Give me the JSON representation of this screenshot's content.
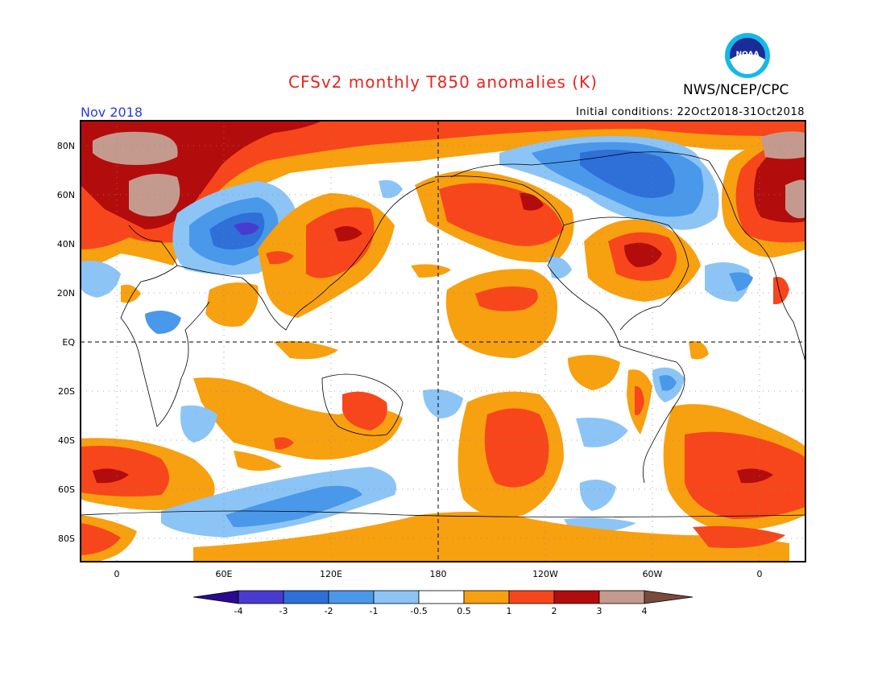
{
  "title": "CFSv2 monthly T850 anomalies (K)",
  "period": "Nov 2018",
  "initial_conditions": "Initial conditions: 22Oct2018-31Oct2018",
  "agency": "NWS/NCEP/CPC",
  "logo_text": "NOAA",
  "lat_labels": [
    "80N",
    "60N",
    "40N",
    "20N",
    "EQ",
    "20S",
    "40S",
    "60S",
    "80S"
  ],
  "lon_labels": [
    "0",
    "60E",
    "120E",
    "180",
    "120W",
    "60W",
    "0"
  ],
  "colorbar": {
    "labels": [
      "-4",
      "-3",
      "-2",
      "-1",
      "-0.5",
      "0.5",
      "1",
      "2",
      "3",
      "4"
    ],
    "colors": [
      "#2a0a90",
      "#4a3bd0",
      "#2e6fd8",
      "#4a98ea",
      "#8cc4f6",
      "#ffffff",
      "#f7a010",
      "#f7461c",
      "#b20c0c",
      "#c49a8e",
      "#7a4a3c"
    ]
  },
  "map_colors": {
    "warm1": "#f7a010",
    "warm2": "#f7461c",
    "warm3": "#b20c0c",
    "warm4": "#c49a8e",
    "cool1": "#8cc4f6",
    "cool2": "#4a98ea",
    "cool3": "#2e6fd8",
    "cool4": "#4a3bd0"
  }
}
